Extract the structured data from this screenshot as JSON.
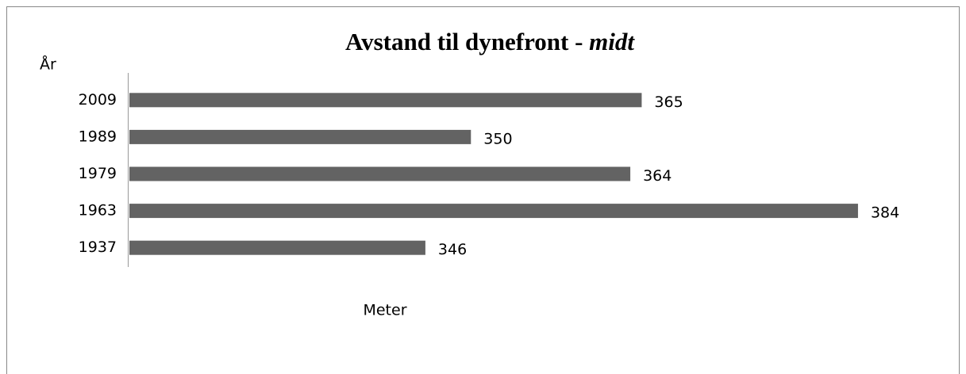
{
  "chart_data": {
    "type": "bar",
    "orientation": "horizontal",
    "title": "Avstand til dynefront -",
    "title_emphasis": "midt",
    "y_label": "År",
    "x_label": "Meter",
    "categories": [
      "1937",
      "1963",
      "1979",
      "1989",
      "2009"
    ],
    "values": [
      346,
      384,
      364,
      350,
      365
    ],
    "color": "#636363",
    "xlim": [
      320,
      390
    ]
  }
}
